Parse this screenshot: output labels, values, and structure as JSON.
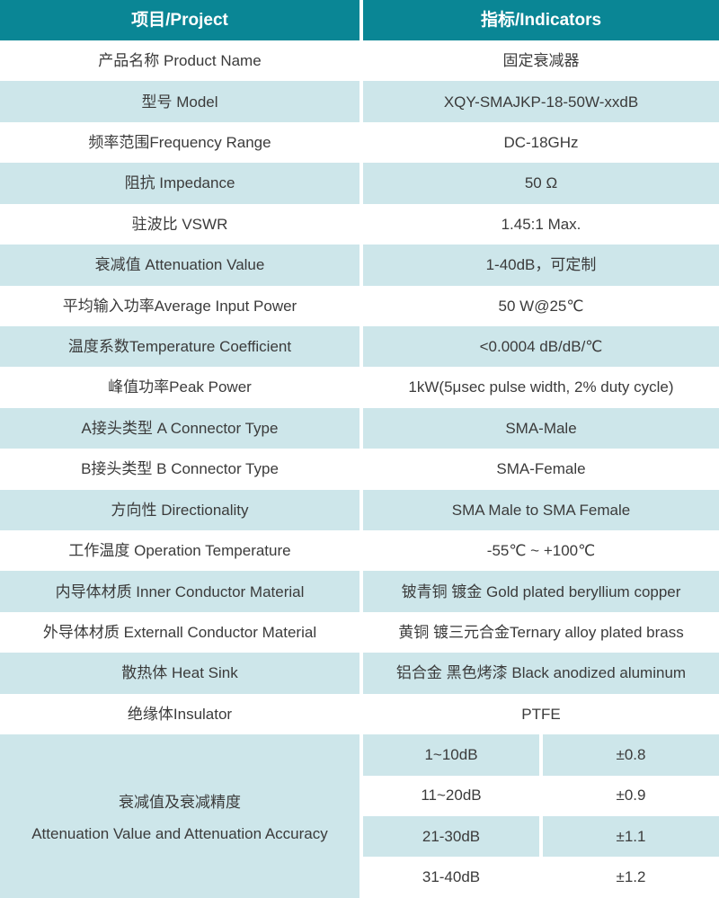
{
  "table": {
    "header": {
      "project": "项目/Project",
      "indicators": "指标/Indicators"
    },
    "rows": [
      {
        "label": "产品名称 Product Name",
        "value": "固定衰减器"
      },
      {
        "label": "型号 Model",
        "value": "XQY-SMAJKP-18-50W-xxdB"
      },
      {
        "label": "频率范围Frequency Range",
        "value": "DC-18GHz"
      },
      {
        "label": "阻抗 Impedance",
        "value": "50 Ω"
      },
      {
        "label": "驻波比 VSWR",
        "value": "1.45:1 Max."
      },
      {
        "label": "衰减值 Attenuation Value",
        "value": "1-40dB，可定制"
      },
      {
        "label": "平均输入功率Average Input Power",
        "value": "50 W@25℃"
      },
      {
        "label": "温度系数Temperature Coefficient",
        "value": "<0.0004 dB/dB/℃"
      },
      {
        "label": "峰值功率Peak Power",
        "value": "1kW(5μsec pulse width, 2% duty cycle)"
      },
      {
        "label": "A接头类型 A Connector Type",
        "value": "SMA-Male"
      },
      {
        "label": "B接头类型 B Connector Type",
        "value": "SMA-Female"
      },
      {
        "label": "方向性 Directionality",
        "value": "SMA Male to SMA Female"
      },
      {
        "label": "工作温度 Operation Temperature",
        "value": "-55℃ ~ +100℃"
      },
      {
        "label": "内导体材质 Inner Conductor Material",
        "value": "铍青铜 镀金 Gold plated beryllium copper"
      },
      {
        "label": "外导体材质 Externall Conductor Material",
        "value": "黄铜 镀三元合金Ternary alloy plated brass"
      },
      {
        "label": "散热体 Heat Sink",
        "value": "铝合金 黑色烤漆 Black anodized aluminum"
      },
      {
        "label": "绝缘体Insulator",
        "value": "PTFE"
      }
    ],
    "span_section": {
      "label_cn": "衰减值及衰减精度",
      "label_en": "Attenuation Value and Attenuation Accuracy",
      "sub_rows": [
        {
          "range": "1~10dB",
          "accuracy": "±0.8"
        },
        {
          "range": "11~20dB",
          "accuracy": "±0.9"
        },
        {
          "range": "21-30dB",
          "accuracy": "±1.1"
        },
        {
          "range": "31-40dB",
          "accuracy": "±1.2"
        }
      ]
    },
    "colors": {
      "header_bg": "#0a8695",
      "alt_row_bg": "#cde6ea",
      "header_text": "#ffffff",
      "body_text": "#3b3b3b",
      "divider": "#ffffff"
    }
  }
}
